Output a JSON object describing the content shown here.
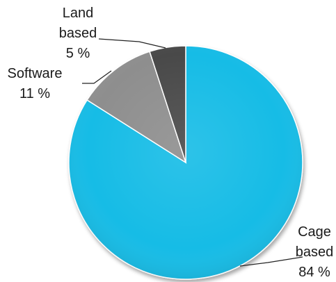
{
  "chart_data": {
    "type": "pie",
    "title": "",
    "slices": [
      {
        "label_lines": [
          "Cage",
          "based"
        ],
        "value_label": "84 %",
        "value": 84,
        "color": "#19BCE6",
        "label_color": "#1a1a1a"
      },
      {
        "label_lines": [
          "Software"
        ],
        "value_label": "11 %",
        "value": 11,
        "color": "#8E8E8E",
        "label_color": "#1a1a1a"
      },
      {
        "label_lines": [
          "Land",
          "based"
        ],
        "value_label": "5 %",
        "value": 5,
        "color": "#4A4A4A",
        "label_color": "#1a1a1a"
      }
    ],
    "start_angle": "12 o'clock",
    "direction": "clockwise",
    "legend": "none"
  }
}
